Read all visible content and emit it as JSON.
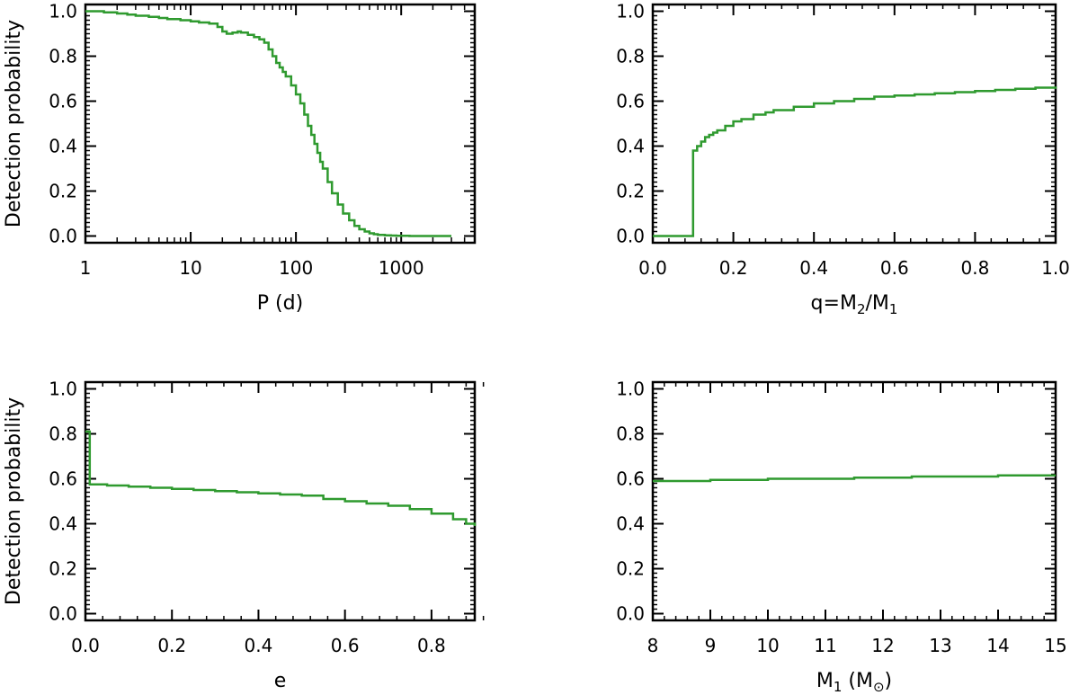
{
  "figure": {
    "ylabel": "Detection probability"
  },
  "chart_data": [
    {
      "id": "period",
      "type": "line",
      "step": true,
      "xlabel": "P (d)",
      "ylabel": "Detection probability",
      "xscale": "log",
      "xlim": [
        1,
        5000
      ],
      "ylim": [
        -0.03,
        1.03
      ],
      "xticks": [
        1,
        10,
        100,
        1000
      ],
      "xtick_labels": [
        "1",
        "10",
        "100",
        "1000"
      ],
      "yticks": [
        0.0,
        0.2,
        0.4,
        0.6,
        0.8,
        1.0
      ],
      "ytick_labels": [
        "0.0",
        "0.2",
        "0.4",
        "0.6",
        "0.8",
        "1.0"
      ],
      "color": "#2f9a2f",
      "series": [
        {
          "x": [
            1.0,
            1.2,
            1.5,
            2,
            2.5,
            3,
            4,
            5,
            6,
            8,
            10,
            12,
            15,
            18,
            20,
            22,
            25,
            28,
            30,
            35,
            40,
            45,
            50,
            55,
            60,
            65,
            70,
            75,
            80,
            90,
            100,
            110,
            120,
            130,
            140,
            150,
            160,
            170,
            180,
            200,
            220,
            250,
            280,
            320,
            360,
            400,
            450,
            500,
            550,
            600,
            700,
            800,
            900,
            1000,
            1200,
            1500,
            2000,
            2500,
            3000
          ],
          "y": [
            1.0,
            1.0,
            0.995,
            0.99,
            0.985,
            0.98,
            0.975,
            0.97,
            0.965,
            0.96,
            0.955,
            0.95,
            0.945,
            0.93,
            0.91,
            0.9,
            0.905,
            0.91,
            0.905,
            0.895,
            0.885,
            0.875,
            0.86,
            0.83,
            0.8,
            0.77,
            0.75,
            0.73,
            0.71,
            0.67,
            0.63,
            0.59,
            0.54,
            0.49,
            0.45,
            0.41,
            0.37,
            0.33,
            0.3,
            0.24,
            0.19,
            0.14,
            0.1,
            0.07,
            0.045,
            0.03,
            0.02,
            0.012,
            0.008,
            0.005,
            0.003,
            0.002,
            0.001,
            0.001,
            0.0,
            0.0,
            0.0,
            0.0,
            0.0
          ]
        }
      ]
    },
    {
      "id": "mass-ratio",
      "type": "line",
      "step": true,
      "xlabel_parts": [
        "q=M",
        "2",
        "/M",
        "1"
      ],
      "xscale": "linear",
      "xlim": [
        0.0,
        1.0
      ],
      "ylim": [
        -0.03,
        1.03
      ],
      "xticks": [
        0.0,
        0.2,
        0.4,
        0.6,
        0.8,
        1.0
      ],
      "xtick_labels": [
        "0.0",
        "0.2",
        "0.4",
        "0.6",
        "0.8",
        "1.0"
      ],
      "yticks": [
        0.0,
        0.2,
        0.4,
        0.6,
        0.8,
        1.0
      ],
      "ytick_labels": [
        "0.0",
        "0.2",
        "0.4",
        "0.6",
        "0.8",
        "1.0"
      ],
      "color": "#2f9a2f",
      "series": [
        {
          "x": [
            0.0,
            0.05,
            0.1,
            0.11,
            0.12,
            0.13,
            0.14,
            0.15,
            0.16,
            0.18,
            0.2,
            0.22,
            0.25,
            0.28,
            0.3,
            0.35,
            0.4,
            0.45,
            0.5,
            0.55,
            0.6,
            0.65,
            0.7,
            0.75,
            0.8,
            0.85,
            0.9,
            0.95,
            1.0
          ],
          "y": [
            0.0,
            0.0,
            0.38,
            0.4,
            0.42,
            0.44,
            0.45,
            0.46,
            0.47,
            0.49,
            0.51,
            0.52,
            0.54,
            0.55,
            0.56,
            0.575,
            0.59,
            0.6,
            0.61,
            0.62,
            0.625,
            0.63,
            0.635,
            0.64,
            0.645,
            0.65,
            0.655,
            0.66,
            0.665
          ]
        }
      ]
    },
    {
      "id": "eccentricity",
      "type": "line",
      "step": true,
      "xlabel": "e",
      "ylabel": "Detection probability",
      "xscale": "linear",
      "xlim": [
        0.0,
        0.9
      ],
      "ylim": [
        -0.03,
        1.03
      ],
      "xticks": [
        0.0,
        0.2,
        0.4,
        0.6,
        0.8
      ],
      "xtick_labels": [
        "0.0",
        "0.2",
        "0.4",
        "0.6",
        "0.8"
      ],
      "yticks": [
        0.0,
        0.2,
        0.4,
        0.6,
        0.8,
        1.0
      ],
      "ytick_labels": [
        "0.0",
        "0.2",
        "0.4",
        "0.6",
        "0.8",
        "1.0"
      ],
      "color": "#2f9a2f",
      "series": [
        {
          "x": [
            0.0,
            0.01,
            0.05,
            0.1,
            0.15,
            0.2,
            0.25,
            0.3,
            0.35,
            0.4,
            0.45,
            0.5,
            0.55,
            0.6,
            0.65,
            0.7,
            0.75,
            0.8,
            0.85,
            0.88,
            0.9
          ],
          "y": [
            0.81,
            0.575,
            0.57,
            0.565,
            0.56,
            0.555,
            0.55,
            0.545,
            0.54,
            0.535,
            0.53,
            0.525,
            0.51,
            0.5,
            0.49,
            0.48,
            0.465,
            0.445,
            0.42,
            0.4,
            0.39
          ]
        }
      ]
    },
    {
      "id": "primary-mass",
      "type": "line",
      "step": true,
      "xlabel_parts": [
        "M",
        "1",
        " (M",
        "⊙",
        ")"
      ],
      "xscale": "linear",
      "xlim": [
        8,
        15
      ],
      "ylim": [
        -0.03,
        1.03
      ],
      "xticks": [
        8,
        9,
        10,
        11,
        12,
        13,
        14,
        15
      ],
      "xtick_labels": [
        "8",
        "9",
        "10",
        "11",
        "12",
        "13",
        "14",
        "15"
      ],
      "yticks": [
        0.0,
        0.2,
        0.4,
        0.6,
        0.8,
        1.0
      ],
      "ytick_labels": [
        "0.0",
        "0.2",
        "0.4",
        "0.6",
        "0.8",
        "1.0"
      ],
      "color": "#2f9a2f",
      "series": [
        {
          "x": [
            8,
            8.5,
            9,
            9.5,
            10,
            10.5,
            11,
            11.5,
            12,
            12.5,
            13,
            13.5,
            14,
            14.5,
            15
          ],
          "y": [
            0.59,
            0.59,
            0.595,
            0.595,
            0.6,
            0.6,
            0.6,
            0.605,
            0.605,
            0.61,
            0.61,
            0.61,
            0.615,
            0.615,
            0.615
          ]
        }
      ]
    }
  ]
}
